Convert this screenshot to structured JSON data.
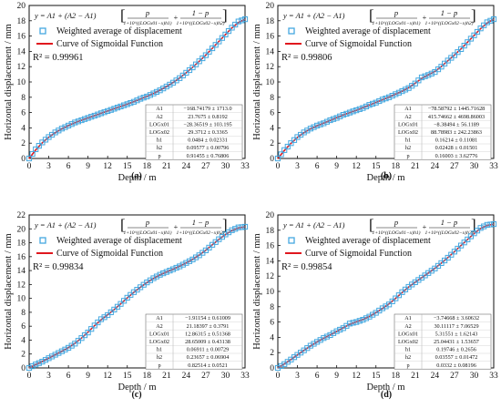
{
  "chart_data": [
    {
      "type": "scatter",
      "label": "(a)",
      "xlabel": "Depth / m",
      "ylabel": "Horizontal displacement / mm",
      "xlim": [
        0,
        33
      ],
      "ylim": [
        0,
        20
      ],
      "xticks": [
        0,
        3,
        6,
        9,
        12,
        15,
        18,
        21,
        24,
        27,
        30,
        33
      ],
      "yticks": [
        0,
        2,
        4,
        6,
        8,
        10,
        12,
        14,
        16,
        18,
        20
      ],
      "legend": [
        "Weighted average of displacement",
        "Curve of Sigmoidal Function"
      ],
      "r2": "R² = 0.99961",
      "params": [
        [
          "A1",
          "−168.74179 ± 1713.0"
        ],
        [
          "A2",
          "23.7675 ± 0.8192"
        ],
        [
          "LOGx01",
          "−28.36519 ± 103.195"
        ],
        [
          "LOGx02",
          "29.3712 ± 0.3365"
        ],
        [
          "h1",
          "0.0484 ± 0.02331"
        ],
        [
          "h2",
          "0.09577 ± 0.00796"
        ],
        [
          "p",
          "0.91455 ± 0.76806"
        ]
      ],
      "x": [
        0,
        1,
        2,
        3,
        4,
        5,
        6,
        7,
        8,
        9,
        10,
        11,
        12,
        13,
        14,
        15,
        16,
        17,
        18,
        19,
        20,
        21,
        22,
        23,
        24,
        25,
        26,
        27,
        28,
        29,
        30,
        31,
        32,
        33
      ],
      "y": [
        0,
        1.2,
        2.1,
        2.8,
        3.4,
        3.9,
        4.3,
        4.7,
        5.0,
        5.3,
        5.6,
        5.9,
        6.2,
        6.5,
        6.8,
        7.1,
        7.4,
        7.8,
        8.1,
        8.5,
        8.9,
        9.4,
        9.9,
        10.5,
        11.2,
        11.9,
        12.7,
        13.5,
        14.4,
        15.3,
        16.2,
        17.1,
        17.9,
        18.2
      ]
    },
    {
      "type": "scatter",
      "label": "(b)",
      "xlabel": "Depth / m",
      "ylabel": "Horizontal displacement / mm",
      "xlim": [
        0,
        33
      ],
      "ylim": [
        0,
        20
      ],
      "xticks": [
        0,
        3,
        6,
        9,
        12,
        15,
        18,
        21,
        24,
        27,
        30,
        33
      ],
      "yticks": [
        0,
        2,
        4,
        6,
        8,
        10,
        12,
        14,
        16,
        18,
        20
      ],
      "legend": [
        "Weighted average of displacement",
        "Curve of Sigmoidal Function"
      ],
      "r2": "R² = 0.99806",
      "params": [
        [
          "A1",
          "−78.58792 ± 1445.71628"
        ],
        [
          "A2",
          "415.74662 ± 4698.86003"
        ],
        [
          "LOGx01",
          "−8.38494 ± 56.1189"
        ],
        [
          "LOGx02",
          "88.78983 ± 242.23863"
        ],
        [
          "h1",
          "0.16214 ± 0.11081"
        ],
        [
          "h2",
          "0.02428 ± 0.01501"
        ],
        [
          "p",
          "0.16003 ± 3.62776"
        ]
      ],
      "x": [
        0,
        1,
        2,
        3,
        4,
        5,
        6,
        7,
        8,
        9,
        10,
        11,
        12,
        13,
        14,
        15,
        16,
        17,
        18,
        19,
        20,
        21,
        22,
        23,
        24,
        25,
        26,
        27,
        28,
        29,
        30,
        31,
        32,
        33
      ],
      "y": [
        0,
        1.1,
        2.0,
        2.8,
        3.4,
        3.9,
        4.3,
        4.6,
        5.0,
        5.3,
        5.7,
        6.0,
        6.3,
        6.6,
        7.0,
        7.3,
        7.7,
        8.0,
        8.4,
        8.8,
        9.2,
        9.8,
        10.6,
        10.9,
        11.3,
        12.0,
        12.8,
        13.5,
        14.3,
        15.2,
        16.1,
        17.0,
        17.8,
        18.2
      ]
    },
    {
      "type": "scatter",
      "label": "(c)",
      "xlabel": "Depth / m",
      "ylabel": "Horizontal displacement / mm",
      "xlim": [
        0,
        33
      ],
      "ylim": [
        0,
        22
      ],
      "xticks": [
        0,
        3,
        6,
        9,
        12,
        15,
        18,
        21,
        24,
        27,
        30,
        33
      ],
      "yticks": [
        0,
        2,
        4,
        6,
        8,
        10,
        12,
        14,
        16,
        18,
        20,
        22
      ],
      "legend": [
        "Weighted average of displacement",
        "Curve of Sigmoidal Function"
      ],
      "r2": "R² = 0.99834",
      "params": [
        [
          "A1",
          "−1.91154 ± 0.61009"
        ],
        [
          "A2",
          "21.18397 ± 0.3791"
        ],
        [
          "LOGx01",
          "12.86315 ± 0.51368"
        ],
        [
          "LOGx02",
          "28.65009 ± 0.43138"
        ],
        [
          "h1",
          "0.06911 ± 0.00729"
        ],
        [
          "h2",
          "0.23657 ± 0.06904"
        ],
        [
          "p",
          "0.82514 ± 0.0521"
        ]
      ],
      "x": [
        0,
        1,
        2,
        3,
        4,
        5,
        6,
        7,
        8,
        9,
        10,
        11,
        12,
        13,
        14,
        15,
        16,
        17,
        18,
        19,
        20,
        21,
        22,
        23,
        24,
        25,
        26,
        27,
        28,
        29,
        30,
        31,
        32,
        33
      ],
      "y": [
        0,
        0.5,
        0.9,
        1.4,
        1.9,
        2.4,
        2.9,
        3.5,
        4.3,
        5.1,
        6.1,
        7.0,
        7.6,
        8.4,
        9.2,
        10.1,
        10.9,
        11.6,
        12.3,
        12.9,
        13.4,
        13.8,
        14.2,
        14.6,
        15.1,
        15.6,
        16.2,
        16.9,
        17.7,
        18.5,
        19.2,
        19.8,
        20.2,
        20.3
      ]
    },
    {
      "type": "scatter",
      "label": "(d)",
      "xlabel": "Depth / m",
      "ylabel": "Horizontal displacement / mm",
      "xlim": [
        0,
        33
      ],
      "ylim": [
        0,
        20
      ],
      "xticks": [
        0,
        3,
        6,
        9,
        12,
        15,
        18,
        21,
        24,
        27,
        30,
        33
      ],
      "yticks": [
        0,
        2,
        4,
        6,
        8,
        10,
        12,
        14,
        16,
        18,
        20
      ],
      "legend": [
        "Weighted average of displacement",
        "Curve of Sigmoidal Function"
      ],
      "r2": "R² = 0.99854",
      "params": [
        [
          "A1",
          "−3.74668 ± 3.60632"
        ],
        [
          "A2",
          "30.11117 ± 7.06529"
        ],
        [
          "LOGx01",
          "5.31551 ± 1.62143"
        ],
        [
          "LOGx02",
          "25.04431 ± 1.53657"
        ],
        [
          "h1",
          "0.19746 ± 0.2656"
        ],
        [
          "h2",
          "0.03557 ± 0.01472"
        ],
        [
          "p",
          "0.0332 ± 0.08196"
        ]
      ],
      "x": [
        0,
        1,
        2,
        3,
        4,
        5,
        6,
        7,
        8,
        9,
        10,
        11,
        12,
        13,
        14,
        15,
        16,
        17,
        18,
        19,
        20,
        21,
        22,
        23,
        24,
        25,
        26,
        27,
        28,
        29,
        30,
        31,
        32,
        33
      ],
      "y": [
        0,
        0.5,
        1.1,
        1.7,
        2.3,
        2.9,
        3.4,
        3.9,
        4.3,
        4.8,
        5.2,
        5.8,
        6.0,
        6.3,
        6.7,
        7.2,
        7.8,
        8.3,
        9.1,
        9.9,
        10.6,
        11.2,
        11.8,
        12.4,
        13.0,
        13.7,
        14.4,
        15.2,
        16.0,
        16.8,
        17.6,
        18.3,
        18.7,
        18.8
      ]
    }
  ],
  "colors": {
    "marker": "#45a8e0",
    "curve": "#e0181e",
    "axis": "#111111"
  }
}
